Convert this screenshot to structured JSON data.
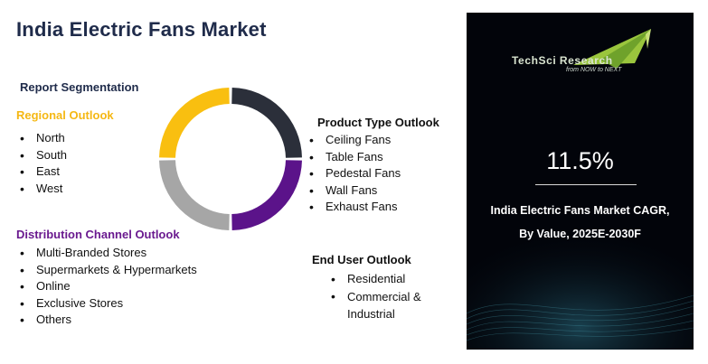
{
  "title": "India Electric Fans Market",
  "report_segmentation": "Report Segmentation",
  "regional": {
    "heading": "Regional Outlook",
    "items": [
      "North",
      "South",
      "East",
      "West"
    ]
  },
  "distribution": {
    "heading": "Distribution Channel Outlook",
    "items": [
      "Multi-Branded Stores",
      "Supermarkets & Hypermarkets",
      "Online",
      "Exclusive Stores",
      "Others"
    ]
  },
  "product": {
    "heading": "Product Type Outlook",
    "items": [
      "Ceiling Fans",
      "Table Fans",
      "Pedestal Fans",
      "Wall Fans",
      "Exhaust Fans"
    ]
  },
  "enduser": {
    "heading": "End User  Outlook",
    "items": [
      "Residential",
      "Commercial & Industrial"
    ]
  },
  "donut": {
    "segment_colors": [
      "#2b2f3a",
      "#5b138a",
      "#a6a6a6",
      "#f9bf10"
    ]
  },
  "brand": {
    "name_part1": "TechSci",
    "name_part2": "Research",
    "tagline": "from NOW to NEXT"
  },
  "cagr": {
    "value": "11.5%",
    "line1": "India Electric Fans Market CAGR,",
    "line2": "By Value, 2025E-2030F"
  }
}
